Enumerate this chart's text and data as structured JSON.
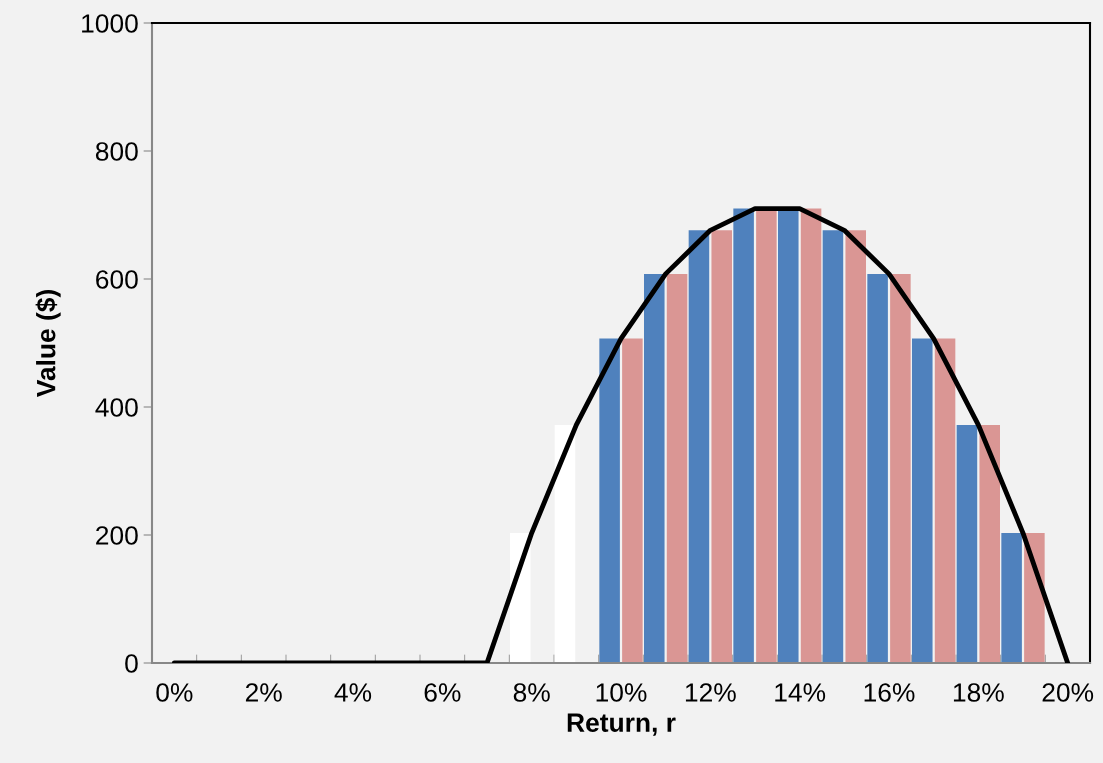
{
  "chart_data": {
    "type": "bar",
    "xlabel": "Return, r",
    "ylabel": "Value ($)",
    "categories": [
      "0%",
      null,
      "2%",
      null,
      "4%",
      null,
      "6%",
      null,
      "8%",
      null,
      "10%",
      null,
      "12%",
      null,
      "14%",
      null,
      "16%",
      null,
      "18%",
      null,
      "20%"
    ],
    "ylim": [
      0,
      1000
    ],
    "yticks": [
      0,
      200,
      400,
      600,
      800,
      1000
    ],
    "grid": false,
    "legend": false,
    "series": [
      {
        "color": "#4f81bd",
        "colors": [
          null,
          null,
          null,
          null,
          null,
          null,
          null,
          null,
          "#ffffff",
          "#ffffff",
          null,
          null,
          null,
          null,
          null,
          null,
          null,
          null,
          null,
          null,
          null
        ],
        "values": [
          null,
          null,
          null,
          null,
          null,
          null,
          null,
          null,
          203,
          372,
          507,
          608,
          676,
          710,
          710,
          676,
          608,
          507,
          372,
          203,
          null
        ]
      },
      {
        "color": "#da9694",
        "values": [
          null,
          null,
          null,
          null,
          null,
          null,
          null,
          null,
          null,
          null,
          507,
          608,
          676,
          710,
          710,
          676,
          608,
          507,
          372,
          203,
          null
        ]
      },
      {
        "type": "line",
        "color": "#000000",
        "marker": "none",
        "line_style": "solid",
        "values": [
          0,
          0,
          0,
          0,
          0,
          0,
          0,
          0,
          203,
          372,
          507,
          608,
          676,
          710,
          710,
          676,
          608,
          507,
          372,
          203,
          0
        ]
      }
    ]
  }
}
